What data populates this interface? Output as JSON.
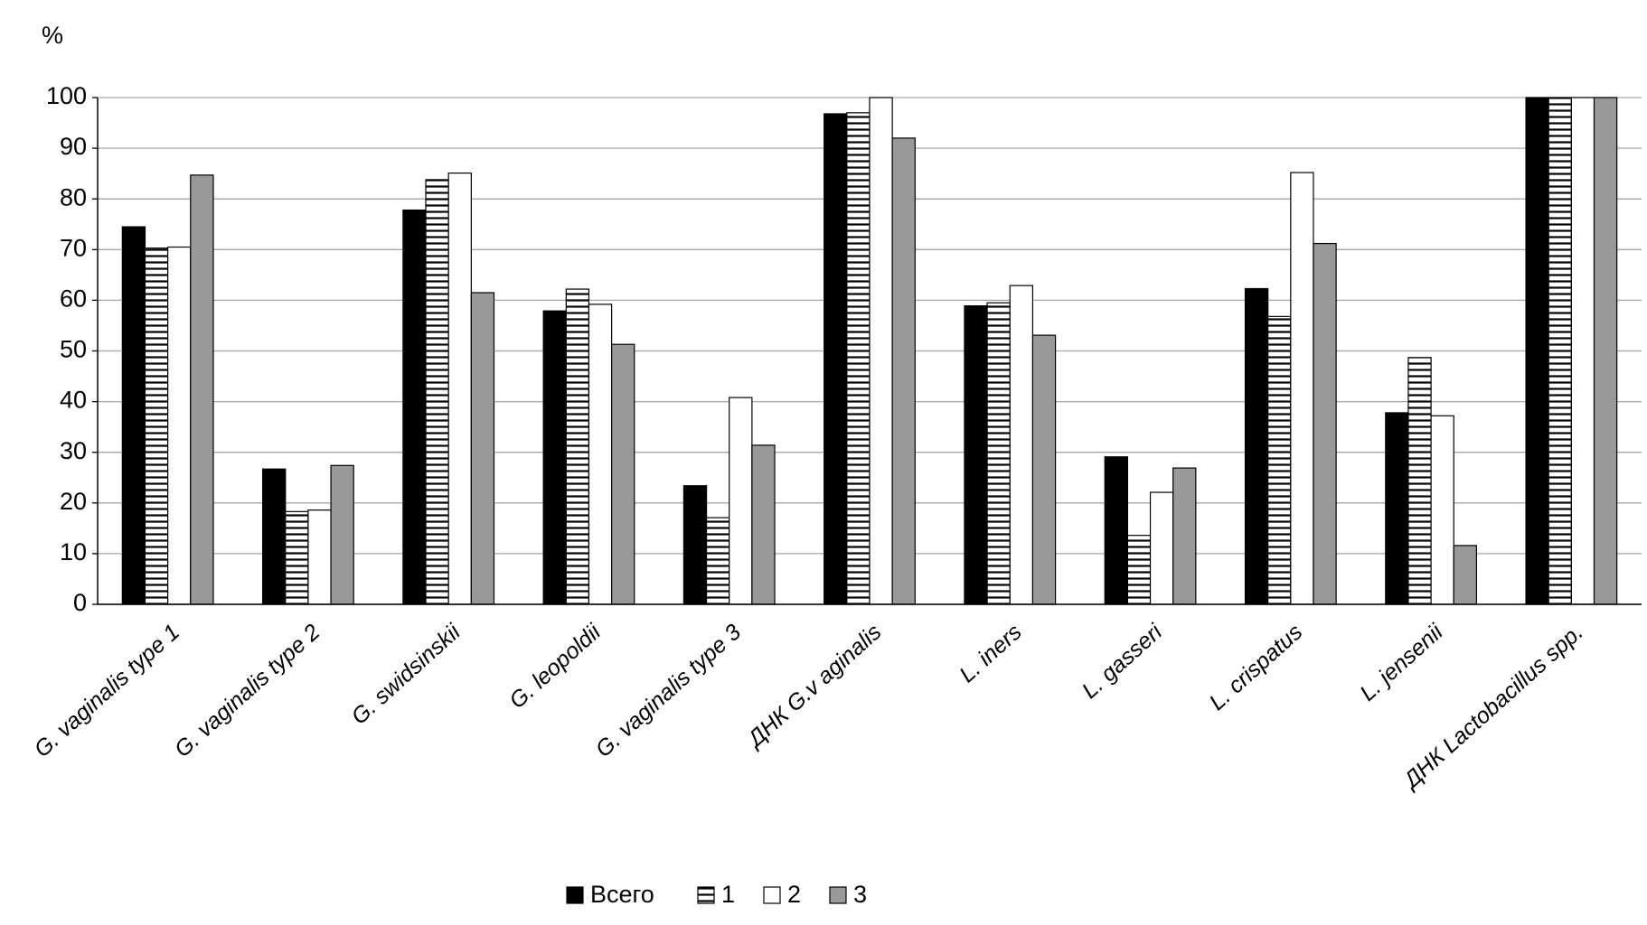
{
  "chart_data": {
    "type": "bar",
    "y_label": "%",
    "categories": [
      "G. vaginalis type 1",
      "G. vaginalis type 2",
      "G. swidsinskii",
      "G. leopoldii",
      "G. vaginalis type 3",
      "ДНК G.v aginalis",
      "L. iners",
      "L. gasseri",
      "L. crispatus",
      "L. jensenii",
      "ДНК Lactobacillus spp."
    ],
    "series": [
      {
        "name": "Всего",
        "color": "#000000",
        "hatch": false,
        "values": [
          74.5,
          26.7,
          77.8,
          57.9,
          23.4,
          96.8,
          58.9,
          29.1,
          62.3,
          37.8,
          100
        ]
      },
      {
        "name": "1",
        "color": "#ffffff",
        "hatch": true,
        "values": [
          70.3,
          18.3,
          83.8,
          62.2,
          17.1,
          97.0,
          59.5,
          13.6,
          56.8,
          48.7,
          100
        ]
      },
      {
        "name": "2",
        "color": "#ffffff",
        "hatch": false,
        "values": [
          70.5,
          18.6,
          85.1,
          59.2,
          40.8,
          100,
          62.9,
          22.1,
          85.2,
          37.2,
          100
        ]
      },
      {
        "name": "3",
        "color": "#999999",
        "hatch": false,
        "values": [
          84.7,
          27.4,
          61.5,
          51.3,
          31.4,
          92.0,
          53.1,
          26.9,
          71.2,
          11.6,
          100
        ]
      }
    ],
    "ylim": [
      0,
      100
    ],
    "yticks": [
      0,
      10,
      20,
      30,
      40,
      50,
      60,
      70,
      80,
      90,
      100
    ],
    "grid": true,
    "legend": "bottom"
  }
}
